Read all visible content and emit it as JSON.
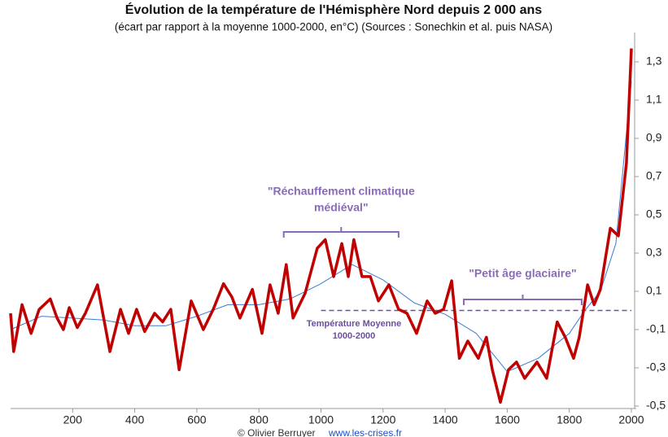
{
  "chart_data": {
    "type": "line",
    "title": "Évolution de la température de l'Hémisphère Nord depuis 2 000 ans",
    "subtitle": "(écart par rapport à la moyenne 1000-2000, en°C) (Sources : Sonechkin et al. puis NASA)",
    "xlim": [
      0,
      2000
    ],
    "xticks": [
      200,
      400,
      600,
      800,
      1000,
      1200,
      1400,
      1600,
      1800,
      2000
    ],
    "ylim": [
      -0.5,
      1.45
    ],
    "yticks": [
      {
        "value": -0.5,
        "label": "-0,5"
      },
      {
        "value": -0.3,
        "label": "-0,3"
      },
      {
        "value": -0.1,
        "label": "-0,1"
      },
      {
        "value": 0.1,
        "label": "0,1"
      },
      {
        "value": 0.3,
        "label": "0,3"
      },
      {
        "value": 0.5,
        "label": "0,5"
      },
      {
        "value": 0.7,
        "label": "0,7"
      },
      {
        "value": 0.9,
        "label": "0,9"
      },
      {
        "value": 1.1,
        "label": "1,1"
      },
      {
        "value": 1.3,
        "label": "1,3"
      }
    ],
    "series": [
      {
        "color": "#c00000",
        "x": [
          0,
          10,
          37,
          66,
          92,
          128,
          150,
          170,
          189,
          215,
          241,
          280,
          320,
          354,
          380,
          406,
          432,
          464,
          490,
          516,
          543,
          582,
          621,
          653,
          686,
          713,
          739,
          779,
          810,
          836,
          862,
          888,
          910,
          949,
          988,
          1014,
          1041,
          1067,
          1088,
          1106,
          1132,
          1159,
          1185,
          1219,
          1250,
          1277,
          1308,
          1342,
          1368,
          1395,
          1421,
          1446,
          1473,
          1507,
          1533,
          1552,
          1578,
          1604,
          1630,
          1656,
          1696,
          1727,
          1761,
          1787,
          1814,
          1832,
          1859,
          1880,
          1900,
          1932,
          1958,
          1984,
          1997,
          2000
        ],
        "values": [
          -0.015,
          -0.215,
          0.03,
          -0.12,
          0.005,
          0.06,
          -0.04,
          -0.1,
          0.015,
          -0.09,
          -0.015,
          0.134,
          -0.215,
          0.006,
          -0.12,
          0.006,
          -0.11,
          -0.015,
          -0.06,
          0.006,
          -0.31,
          0.05,
          -0.1,
          0.006,
          0.14,
          0.07,
          -0.04,
          0.11,
          -0.12,
          0.134,
          -0.015,
          0.24,
          -0.04,
          0.09,
          0.325,
          0.37,
          0.177,
          0.35,
          0.177,
          0.37,
          0.177,
          0.177,
          0.05,
          0.134,
          0.006,
          -0.015,
          -0.12,
          0.05,
          -0.015,
          0.006,
          0.155,
          -0.25,
          -0.16,
          -0.25,
          -0.14,
          -0.31,
          -0.48,
          -0.31,
          -0.27,
          -0.355,
          -0.27,
          -0.355,
          -0.06,
          -0.14,
          -0.25,
          -0.14,
          0.134,
          0.03,
          0.11,
          0.43,
          0.39,
          0.77,
          1.26,
          1.37
        ]
      },
      {
        "color": "#3a7bd5",
        "x": [
          0,
          100,
          200,
          300,
          400,
          500,
          600,
          700,
          800,
          900,
          1000,
          1100,
          1200,
          1300,
          1400,
          1500,
          1600,
          1700,
          1800,
          1850,
          1900,
          1950,
          2000
        ],
        "values": [
          -0.1,
          -0.03,
          -0.04,
          -0.05,
          -0.08,
          -0.08,
          -0.03,
          0.03,
          0.03,
          0.06,
          0.14,
          0.24,
          0.16,
          0.04,
          -0.02,
          -0.12,
          -0.32,
          -0.25,
          -0.12,
          0.0,
          0.1,
          0.35,
          1.2
        ]
      }
    ],
    "reference_line": {
      "value": 0,
      "x": [
        1000,
        2000
      ],
      "color": "#6b4fa0",
      "lines": [
        "Température Moyenne",
        "1000-2000"
      ]
    },
    "annotations": [
      {
        "lines": [
          "\"Réchauffement climatique",
          "médiéval\""
        ],
        "x": [
          880,
          1250
        ]
      },
      {
        "lines": [
          "\"Petit âge glaciaire\""
        ],
        "x": [
          1460,
          1840
        ]
      }
    ],
    "footer": [
      "© Olivier Berruyer",
      "www.les-crises.fr"
    ]
  }
}
